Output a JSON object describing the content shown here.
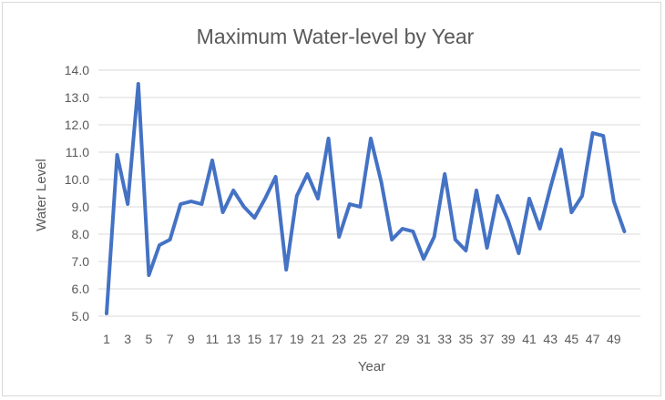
{
  "chart_data": {
    "type": "line",
    "title": "Maximum Water-level by Year",
    "xlabel": "Year",
    "ylabel": "Water Level",
    "ylim": [
      5.0,
      14.0
    ],
    "y_ticks": [
      "5.0",
      "6.0",
      "7.0",
      "8.0",
      "9.0",
      "10.0",
      "11.0",
      "12.0",
      "13.0",
      "14.0"
    ],
    "x": [
      1,
      2,
      3,
      4,
      5,
      6,
      7,
      8,
      9,
      10,
      11,
      12,
      13,
      14,
      15,
      16,
      17,
      18,
      19,
      20,
      21,
      22,
      23,
      24,
      25,
      26,
      27,
      28,
      29,
      30,
      31,
      32,
      33,
      34,
      35,
      36,
      37,
      38,
      39,
      40,
      41,
      42,
      43,
      44,
      45,
      46,
      47,
      48,
      49,
      50
    ],
    "x_tick_labels": [
      "1",
      "3",
      "5",
      "7",
      "9",
      "11",
      "13",
      "15",
      "17",
      "19",
      "21",
      "23",
      "25",
      "27",
      "29",
      "31",
      "33",
      "35",
      "37",
      "39",
      "41",
      "43",
      "45",
      "47",
      "49"
    ],
    "x_tick_values": [
      1,
      3,
      5,
      7,
      9,
      11,
      13,
      15,
      17,
      19,
      21,
      23,
      25,
      27,
      29,
      31,
      33,
      35,
      37,
      39,
      41,
      43,
      45,
      47,
      49
    ],
    "grid": "horizontal",
    "legend": "none",
    "series": [
      {
        "color": "#4472c4",
        "values": [
          5.1,
          10.9,
          9.1,
          13.5,
          6.5,
          7.6,
          7.8,
          9.1,
          9.2,
          9.1,
          10.7,
          8.8,
          9.6,
          9.0,
          8.6,
          9.3,
          10.1,
          6.7,
          9.4,
          10.2,
          9.3,
          11.5,
          7.9,
          9.1,
          9.0,
          11.5,
          9.9,
          7.8,
          8.2,
          8.1,
          7.1,
          7.9,
          10.2,
          7.8,
          7.4,
          9.6,
          7.5,
          9.4,
          8.5,
          7.3,
          9.3,
          8.2,
          9.7,
          11.1,
          8.8,
          9.4,
          11.7,
          11.6,
          9.2,
          8.1
        ]
      }
    ]
  }
}
